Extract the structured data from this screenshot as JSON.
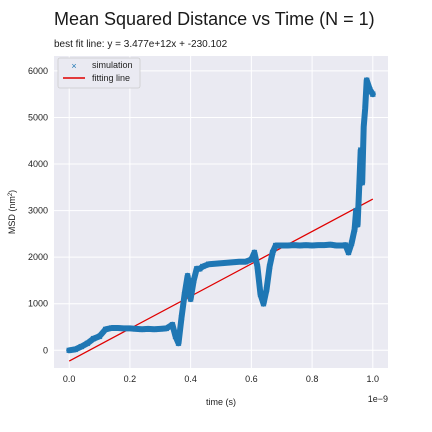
{
  "chart_data": {
    "type": "scatter",
    "title": "Mean Squared Distance vs Time (N = 1)",
    "subtitle": "best fit line: y = 3.477e+12x + -230.102",
    "xlabel": "time (s)",
    "ylabel_main": "MSD (nm",
    "ylabel_sup": "2",
    "ylabel_end": ")",
    "x_offset_label": "1e−9",
    "xlim": [
      -0.05,
      1.05
    ],
    "ylim": [
      -380,
      6320
    ],
    "x_ticks": [
      0.0,
      0.2,
      0.4,
      0.6,
      0.8,
      1.0
    ],
    "x_tick_labels": [
      "0.0",
      "0.2",
      "0.4",
      "0.6",
      "0.8",
      "1.0"
    ],
    "y_ticks": [
      0,
      1000,
      2000,
      3000,
      4000,
      5000,
      6000
    ],
    "y_tick_labels": [
      "0",
      "1000",
      "2000",
      "3000",
      "4000",
      "5000",
      "6000"
    ],
    "grid": true,
    "legend_position": "top-left",
    "series": [
      {
        "name": "simulation",
        "marker": "x",
        "color": "#1f77b4",
        "x": [
          0.0,
          0.02,
          0.04,
          0.06,
          0.08,
          0.1,
          0.12,
          0.14,
          0.16,
          0.18,
          0.2,
          0.22,
          0.24,
          0.26,
          0.28,
          0.3,
          0.32,
          0.34,
          0.35,
          0.36,
          0.37,
          0.38,
          0.39,
          0.4,
          0.41,
          0.42,
          0.43,
          0.44,
          0.46,
          0.48,
          0.5,
          0.52,
          0.54,
          0.56,
          0.58,
          0.6,
          0.61,
          0.62,
          0.63,
          0.64,
          0.65,
          0.66,
          0.67,
          0.68,
          0.7,
          0.72,
          0.74,
          0.76,
          0.78,
          0.8,
          0.82,
          0.84,
          0.86,
          0.88,
          0.9,
          0.91,
          0.92,
          0.93,
          0.94,
          0.945,
          0.95,
          0.955,
          0.96,
          0.965,
          0.97,
          0.975,
          0.98,
          0.99,
          1.0
        ],
        "y": [
          0,
          20,
          80,
          150,
          250,
          300,
          450,
          480,
          480,
          470,
          470,
          460,
          450,
          460,
          450,
          460,
          470,
          550,
          300,
          150,
          700,
          1200,
          1600,
          1100,
          1500,
          1750,
          1750,
          1800,
          1850,
          1860,
          1870,
          1880,
          1890,
          1900,
          1900,
          1950,
          2100,
          1800,
          1200,
          1000,
          1300,
          1800,
          2100,
          2250,
          2250,
          2250,
          2260,
          2250,
          2260,
          2250,
          2260,
          2260,
          2270,
          2250,
          2250,
          2260,
          2100,
          2300,
          2600,
          3000,
          2700,
          3500,
          4300,
          3600,
          4800,
          5200,
          5800,
          5600,
          5500
        ]
      },
      {
        "name": "fitting line",
        "type": "line",
        "color": "#e00000",
        "x": [
          0.0,
          1.0
        ],
        "y": [
          -230.102,
          3246.898
        ]
      }
    ]
  }
}
